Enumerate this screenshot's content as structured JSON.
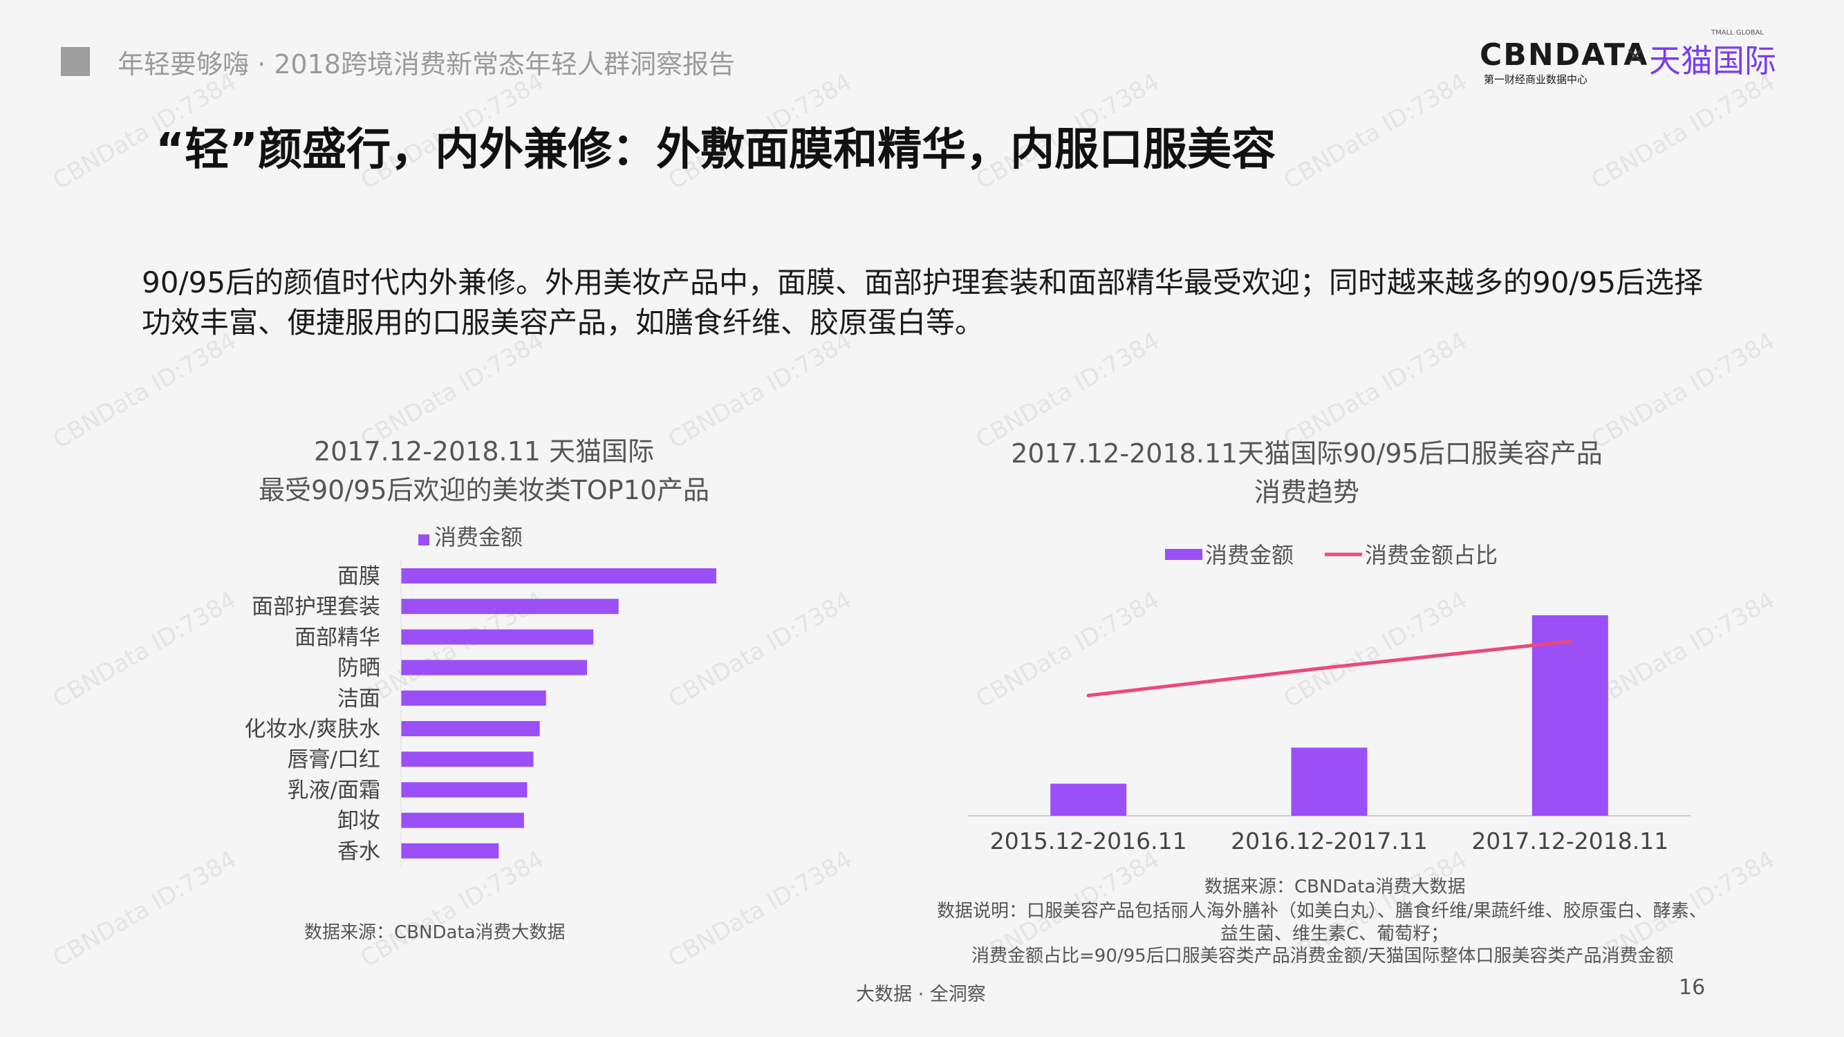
{
  "header": {
    "title": "年轻要够嗨 · 2018跨境消费新常态年轻人群洞察报告"
  },
  "brand": {
    "cbndata": "CBNDATA",
    "cbndata_sub": "第一财经商业数据中心",
    "times": "×",
    "tmall": "天猫国际",
    "tmall_en": "TMALL GLOBAL"
  },
  "main_title": "“轻”颜盛行，内外兼修：外敷面膜和精华，内服口服美容",
  "intro": "90/95后的颜值时代内外兼修。外用美妆产品中，面膜、面部护理套装和面部精华最受欢迎；同时越来越多的90/95后选择功效丰富、便捷服用的口服美容产品，如膳食纤维、胶原蛋白等。",
  "watermark": "CBNData ID:7384",
  "colors": {
    "bar": "#9b4ff7",
    "line": "#e84c7a",
    "brand_purple": "#7a3cf0"
  },
  "chart_data": [
    {
      "type": "bar",
      "orientation": "horizontal",
      "title_line1": "2017.12-2018.11 天猫国际",
      "title_line2": "最受90/95后欢迎的美妆类TOP10产品",
      "legend": "消费金额",
      "legend_position": "top",
      "categories": [
        "面膜",
        "面部护理套装",
        "面部精华",
        "防晒",
        "洁面",
        "化妆水/爽肤水",
        "唇膏/口红",
        "乳液/面霜",
        "卸妆",
        "香水"
      ],
      "values": [
        100,
        69,
        61,
        59,
        46,
        44,
        42,
        40,
        39,
        31
      ],
      "xlim": [
        0,
        100
      ],
      "grid": false,
      "source": "数据来源：CBNData消费大数据"
    },
    {
      "type": "bar+line",
      "title_line1": "2017.12-2018.11天猫国际90/95后口服美容产品",
      "title_line2": "消费趋势",
      "legend_bar": "消费金额",
      "legend_line": "消费金额占比",
      "legend_position": "top",
      "categories": [
        "2015.12-2016.11",
        "2016.12-2017.11",
        "2017.12-2018.11"
      ],
      "bar_values": [
        16,
        34,
        100
      ],
      "line_values": [
        60,
        74,
        87
      ],
      "ylim": [
        0,
        100
      ],
      "grid": false,
      "source": "数据来源：CBNData消费大数据",
      "note1": "数据说明：口服美容产品包括丽人海外膳补（如美白丸）、膳食纤维/果蔬纤维、胶原蛋白、酵素、",
      "note2": "益生菌、维生素C、葡萄籽；",
      "note3": "消费金额占比=90/95后口服美容类产品消费金额/天猫国际整体口服美容类产品消费金额"
    }
  ],
  "footer": {
    "center": "大数据 · 全洞察",
    "page": "16"
  }
}
